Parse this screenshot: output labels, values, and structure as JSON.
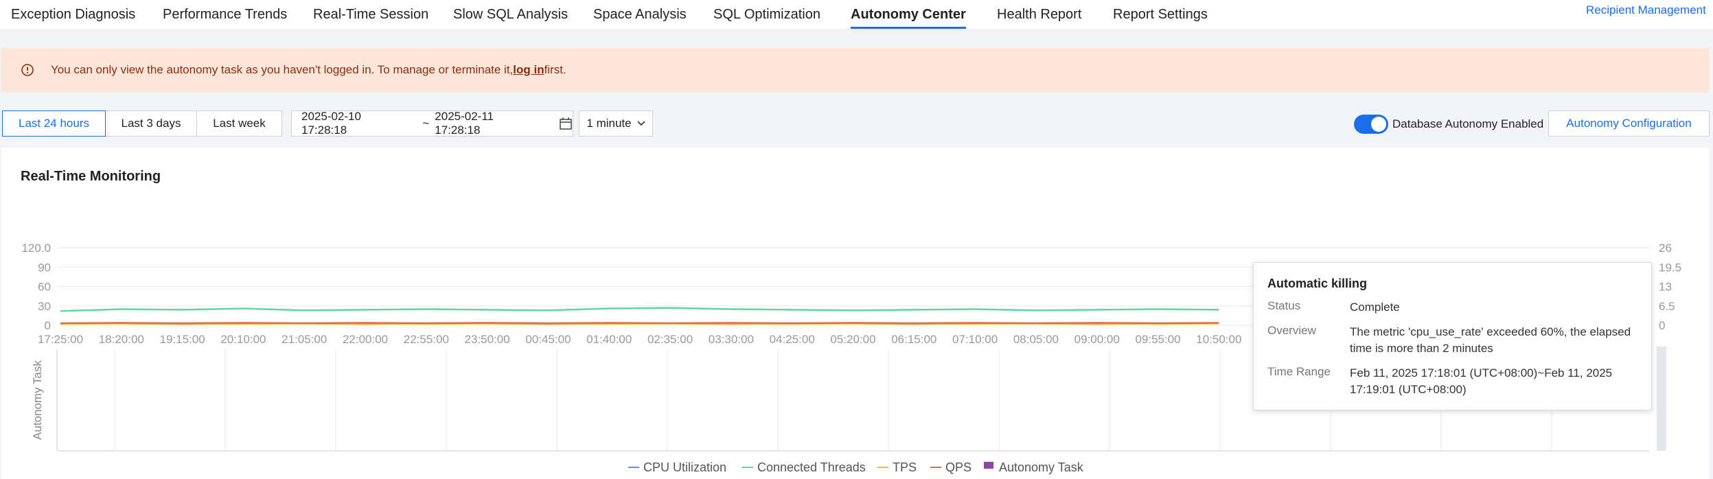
{
  "tabs": [
    "Exception Diagnosis",
    "Performance Trends",
    "Real-Time Session",
    "Slow SQL Analysis",
    "Space Analysis",
    "SQL Optimization",
    "Autonomy Center",
    "Health Report",
    "Report Settings"
  ],
  "recipient_link": "Recipient Management",
  "alert": {
    "text": "You can only view the autonomy task as you haven't logged in. To manage or terminate it,",
    "link": "log in",
    "after": "first."
  },
  "toolbar": {
    "ranges": [
      "Last 24 hours",
      "Last 3 days",
      "Last week"
    ],
    "start": "2025-02-10 17:28:18",
    "separator": "~",
    "end": "2025-02-11 17:28:18",
    "granularity": "1 minute",
    "toggle_label": "Database Autonomy Enabled",
    "config_button": "Autonomy Configuration"
  },
  "card_title": "Real-Time Monitoring",
  "chart_data": {
    "type": "line",
    "categories": [
      "17:25:00",
      "18:20:00",
      "19:15:00",
      "20:10:00",
      "21:05:00",
      "22:00:00",
      "22:55:00",
      "23:50:00",
      "00:45:00",
      "01:40:00",
      "02:35:00",
      "03:30:00",
      "04:25:00",
      "05:20:00",
      "06:15:00",
      "07:10:00",
      "08:05:00",
      "09:00:00",
      "09:55:00",
      "10:50:00",
      null,
      null,
      null,
      null,
      null,
      null,
      null
    ],
    "ylim": [
      0,
      120
    ],
    "yticks": [
      0,
      30,
      60,
      90,
      {
        "value": 120,
        "label": "120.0"
      }
    ],
    "y2lim": [
      0,
      26
    ],
    "y2ticks": [
      0,
      6.5,
      13,
      19.5,
      26
    ],
    "lower_axis_label": "Autonomy Task",
    "series": [
      {
        "name": "CPU Utilization",
        "color": "#5b8ff9",
        "values": [
          3,
          3,
          2,
          3,
          3,
          2,
          3,
          3,
          2,
          3,
          3,
          2,
          3,
          3,
          2,
          3,
          3,
          2,
          3,
          3,
          null,
          null,
          null,
          null,
          null,
          null,
          null
        ]
      },
      {
        "name": "Connected Threads",
        "color": "#5ad8a6",
        "values": [
          22,
          25,
          24,
          26,
          23,
          24,
          25,
          24,
          23,
          26,
          27,
          25,
          24,
          23,
          24,
          25,
          23,
          24,
          25,
          24,
          null,
          null,
          null,
          null,
          null,
          null,
          null
        ]
      },
      {
        "name": "TPS",
        "color": "#f6bd16",
        "axis": "y2",
        "values": [
          0.5,
          0.6,
          0.5,
          0.5,
          0.6,
          0.5,
          0.5,
          0.6,
          0.5,
          0.5,
          0.6,
          0.5,
          0.5,
          0.6,
          0.5,
          0.5,
          0.6,
          0.5,
          0.5,
          0.6,
          null,
          null,
          null,
          null,
          null,
          null,
          null
        ]
      },
      {
        "name": "QPS",
        "color": "#e8684a",
        "axis": "y2",
        "values": [
          0.7,
          0.8,
          0.7,
          0.8,
          0.7,
          0.8,
          0.7,
          0.8,
          0.7,
          0.8,
          0.7,
          0.8,
          0.7,
          0.8,
          0.7,
          0.8,
          0.7,
          0.8,
          0.7,
          0.8,
          null,
          null,
          null,
          null,
          null,
          null,
          null
        ]
      },
      {
        "name": "Autonomy Task",
        "color": "#8e44ad",
        "values": [
          null,
          null,
          null,
          null,
          null,
          null,
          null,
          null,
          null,
          null,
          null,
          null,
          null,
          null,
          null,
          null,
          null,
          null,
          null,
          null,
          null,
          null,
          null,
          null,
          null,
          null,
          null
        ]
      }
    ]
  },
  "tooltip": {
    "title": "Automatic killing",
    "rows": [
      [
        "Status",
        "Complete"
      ],
      [
        "Overview",
        "The metric 'cpu_use_rate' exceeded 60%, the elapsed time is more than 2 minutes"
      ],
      [
        "Time Range",
        "Feb 11, 2025 17:18:01 (UTC+08:00)~Feb 11, 2025 17:19:01 (UTC+08:00)"
      ]
    ]
  }
}
